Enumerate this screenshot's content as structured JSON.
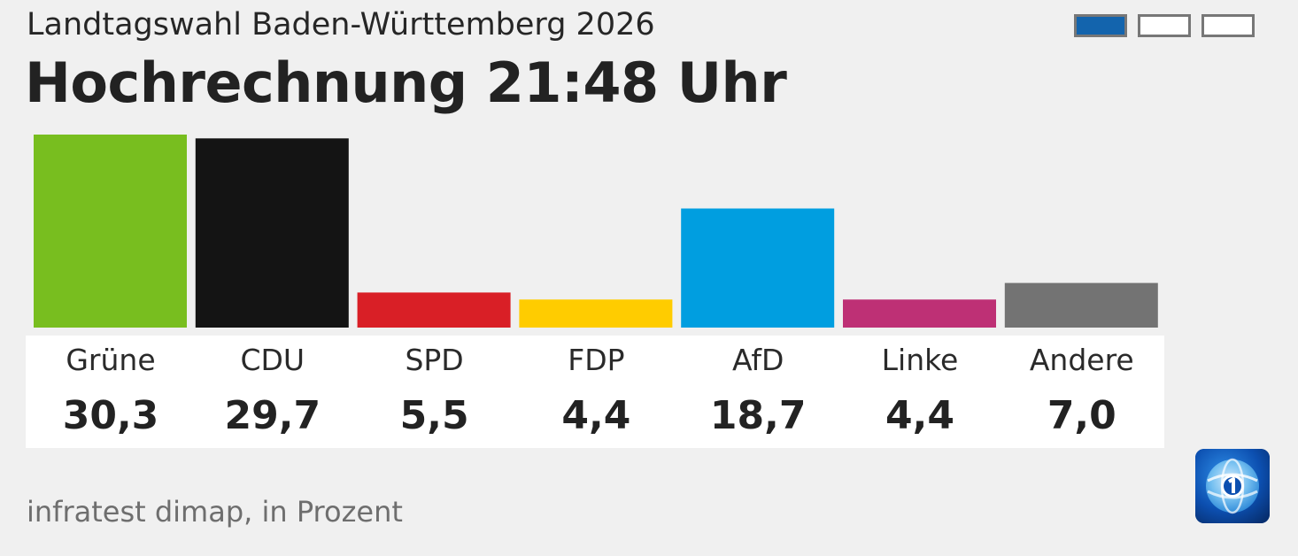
{
  "header": {
    "subtitle": "Landtagswahl Baden-Württemberg 2026",
    "title": "Hochrechnung 21:48 Uhr"
  },
  "pager": {
    "pages": 3,
    "active": 0,
    "active_color": "#1364ad"
  },
  "chart_data": {
    "type": "bar",
    "title": "Hochrechnung 21:48 Uhr",
    "subtitle": "Landtagswahl Baden-Württemberg 2026",
    "categories": [
      "Grüne",
      "CDU",
      "SPD",
      "FDP",
      "AfD",
      "Linke",
      "Andere"
    ],
    "values": [
      30.3,
      29.7,
      5.5,
      4.4,
      18.7,
      4.4,
      7.0
    ],
    "value_labels": [
      "30,3",
      "29,7",
      "5,5",
      "4,4",
      "18,7",
      "4,4",
      "7,0"
    ],
    "colors": [
      "#78be1f",
      "#141414",
      "#d91f26",
      "#ffcc00",
      "#009ee0",
      "#be3075",
      "#737373"
    ],
    "unit": "Prozent",
    "ylim": [
      0,
      30.3
    ],
    "grid": false,
    "xlabel": "",
    "ylabel": ""
  },
  "footer": {
    "source": "infratest dimap, in Prozent"
  },
  "logo": {
    "icon": "tagesschau-logo-icon",
    "bg_color": "#0a3f8f"
  }
}
